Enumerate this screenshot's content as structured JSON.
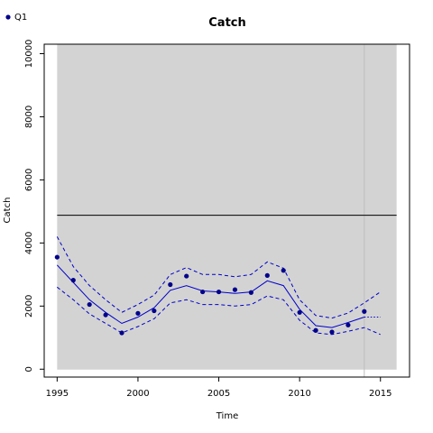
{
  "chart_data": {
    "type": "line",
    "title": "Catch",
    "xlabel": "Time",
    "ylabel": "Catch",
    "xlim": [
      1994.2,
      2016.8
    ],
    "ylim": [
      -250,
      10300
    ],
    "x_ticks": [
      1995,
      2000,
      2005,
      2010,
      2015
    ],
    "y_ticks": [
      0,
      2000,
      4000,
      6000,
      8000,
      10000
    ],
    "shaded_region": [
      1995,
      2016
    ],
    "reference_line": 4880,
    "vertical_line": 2014,
    "legend": {
      "placement": "top-left",
      "label": "Q1"
    },
    "colors": {
      "series": "#0000cc",
      "points": "#00008b",
      "shade": "#d3d3d3",
      "reference": "#000000",
      "vertical": "#bebebe"
    },
    "observed": {
      "name": "Q1",
      "x": [
        1995,
        1996,
        1997,
        1998,
        1999,
        2000,
        2001,
        2002,
        2003,
        2004,
        2005,
        2006,
        2007,
        2008,
        2009,
        2010,
        2011,
        2012,
        2013,
        2014
      ],
      "y": [
        3550,
        2820,
        2050,
        1720,
        1150,
        1770,
        1850,
        2680,
        2950,
        2450,
        2450,
        2520,
        2430,
        2970,
        3130,
        1800,
        1230,
        1180,
        1400,
        1830
      ]
    },
    "fit": {
      "x": [
        1995,
        1996,
        1997,
        1998,
        1999,
        2000,
        2001,
        2002,
        2003,
        2004,
        2005,
        2006,
        2007,
        2008,
        2009,
        2010,
        2011,
        2012,
        2013,
        2014
      ],
      "y": [
        3300,
        2750,
        2200,
        1800,
        1450,
        1650,
        1950,
        2500,
        2650,
        2480,
        2450,
        2400,
        2450,
        2800,
        2650,
        1900,
        1380,
        1320,
        1480,
        1650
      ]
    },
    "upper": {
      "x": [
        1995,
        1996,
        1997,
        1998,
        1999,
        2000,
        2001,
        2002,
        2003,
        2004,
        2005,
        2006,
        2007,
        2008,
        2009,
        2010,
        2011,
        2012,
        2013,
        2014,
        2015
      ],
      "y": [
        4200,
        3250,
        2650,
        2200,
        1800,
        2050,
        2350,
        3000,
        3220,
        3000,
        3000,
        2930,
        3000,
        3400,
        3200,
        2200,
        1700,
        1620,
        1780,
        2100,
        2450
      ]
    },
    "lower": {
      "x": [
        1995,
        1996,
        1997,
        1998,
        1999,
        2000,
        2001,
        2002,
        2003,
        2004,
        2005,
        2006,
        2007,
        2008,
        2009,
        2010,
        2011,
        2012,
        2013,
        2014,
        2015
      ],
      "y": [
        2600,
        2200,
        1750,
        1450,
        1150,
        1350,
        1600,
        2100,
        2200,
        2050,
        2050,
        2000,
        2050,
        2320,
        2200,
        1550,
        1150,
        1100,
        1200,
        1320,
        1100
      ]
    },
    "projection": {
      "x": [
        2014,
        2015
      ],
      "y": [
        1650,
        1650
      ]
    }
  }
}
